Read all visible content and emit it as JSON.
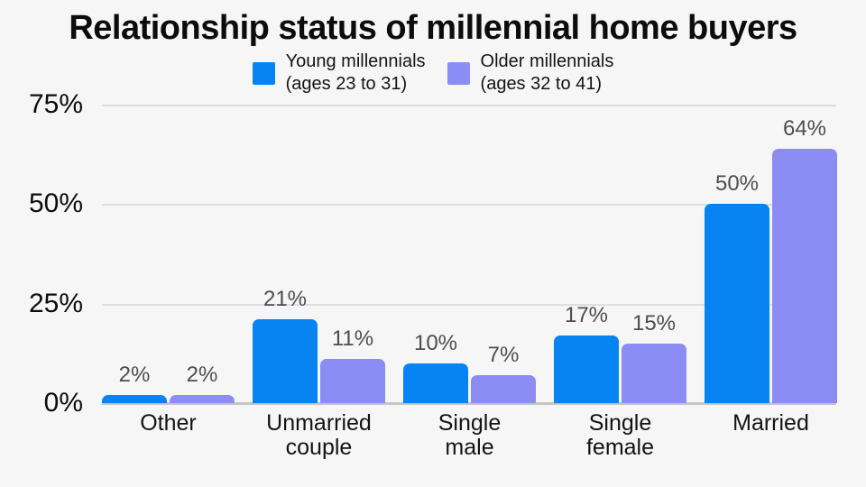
{
  "title": "Relationship status of millennial home buyers",
  "colors": {
    "young": "#0883f2",
    "older": "#8c8cf5",
    "background": "#f6f6f6",
    "gridline": "#dedede",
    "axis_line": "#c5c5c5",
    "value_label": "#4d4d4d",
    "text": "#131313"
  },
  "legend": [
    {
      "name": "Young millennials",
      "ages": "(ages 23 to 31)"
    },
    {
      "name": "Older millennials",
      "ages": "(ages 32 to 41)"
    }
  ],
  "y_axis": {
    "tick_values": [
      75,
      50,
      25,
      0
    ],
    "suffix": "%"
  },
  "chart_data": {
    "type": "bar",
    "title": "Relationship status of millennial home buyers",
    "categories": [
      "Other",
      "Unmarried couple",
      "Single male",
      "Single female",
      "Married"
    ],
    "series": [
      {
        "name": "Young millennials (ages 23 to 31)",
        "values": [
          2,
          21,
          10,
          17,
          50
        ]
      },
      {
        "name": "Older millennials (ages 32 to 41)",
        "values": [
          2,
          11,
          7,
          15,
          64
        ]
      }
    ],
    "value_suffix": "%",
    "xlabel": "",
    "ylabel": "",
    "ylim": [
      0,
      75
    ],
    "grid": true,
    "legend_position": "top"
  }
}
